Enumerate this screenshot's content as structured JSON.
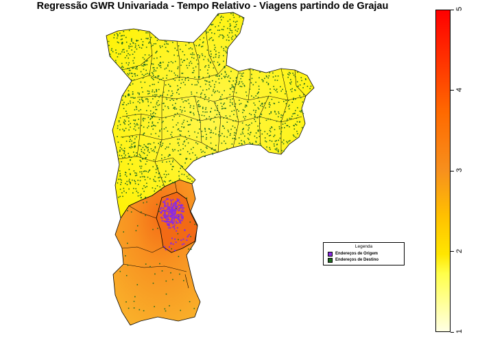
{
  "title": "Regressão GWR Univariada - Tempo Relativo - Viagens partindo de Grajau",
  "legend": {
    "title": "Legenda",
    "items": [
      {
        "label": "Endereços de Origem",
        "color": "#8a2be2"
      },
      {
        "label": "Endereços de Destino",
        "color": "#1f6b1f"
      }
    ]
  },
  "colorbar": {
    "min": 1,
    "max": 5,
    "ticks": [
      {
        "value": 1,
        "label": "1"
      },
      {
        "value": 2,
        "label": "2"
      },
      {
        "value": 3,
        "label": "3"
      },
      {
        "value": 4,
        "label": "4"
      },
      {
        "value": 5,
        "label": "5"
      }
    ],
    "colors": [
      "#ffffe4",
      "#ffff4a",
      "#ffc000",
      "#f7901d",
      "#ff0000"
    ]
  },
  "map_colors": {
    "north_fill": "#fff22a",
    "south_fill": "#f7a21a",
    "hotspot_fill": "#f46d16",
    "destination_points": "#1f6b1f",
    "origin_points": "#8a2be2",
    "boundary": "#000000"
  }
}
